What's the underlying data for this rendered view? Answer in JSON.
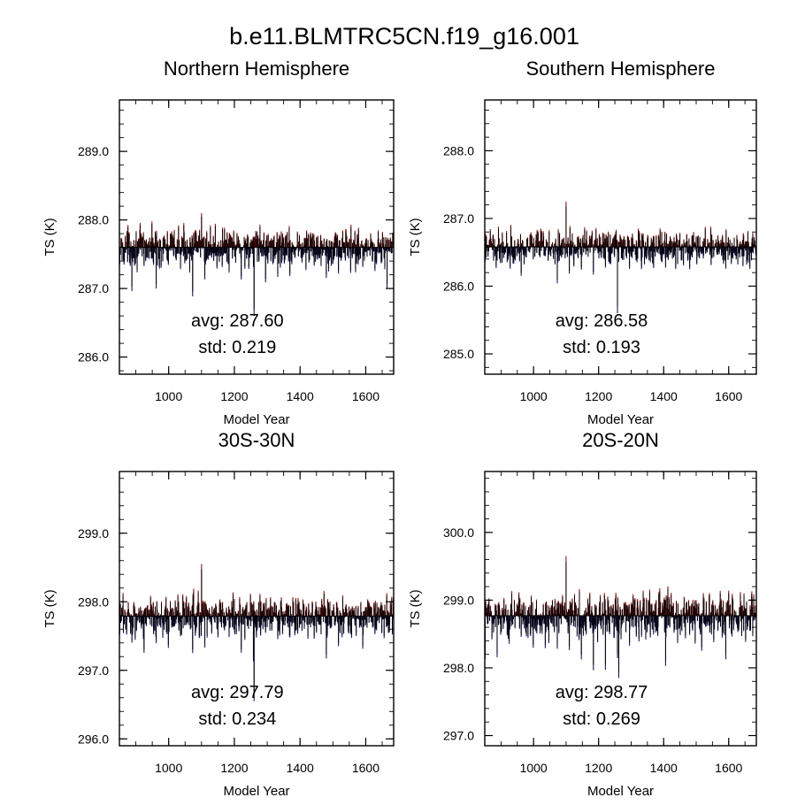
{
  "title": "b.e11.BLMTRC5CN.f19_g16.001",
  "colors": {
    "above": "#8b1a1a",
    "below": "#1a1a5e",
    "axis": "#000000",
    "bar": "#000000"
  },
  "chart_data": [
    {
      "type": "bar",
      "title": "Northern Hemisphere",
      "xlabel": "Model Year",
      "ylabel": "TS (K)",
      "xlim": [
        850,
        1685
      ],
      "ylim": [
        285.75,
        289.75
      ],
      "x_ticks": [
        1000,
        1200,
        1400,
        1600
      ],
      "x_tick_labels": [
        "1000",
        "1200",
        "1400",
        "1600"
      ],
      "y_ticks": [
        286.0,
        287.0,
        288.0,
        289.0
      ],
      "y_tick_labels": [
        "286.0",
        "287.0",
        "288.0",
        "289.0"
      ],
      "avg": 287.6,
      "std": 0.219,
      "avg_text": "avg: 287.60",
      "std_text": "std:  0.219",
      "ref_value": 287.6,
      "series_min": 286.6,
      "series_max": 288.1,
      "min_year": 1260
    },
    {
      "type": "bar",
      "title": "Southern Hemisphere",
      "xlabel": "Model Year",
      "ylabel": "TS (K)",
      "xlim": [
        850,
        1685
      ],
      "ylim": [
        284.7,
        288.75
      ],
      "x_ticks": [
        1000,
        1200,
        1400,
        1600
      ],
      "x_tick_labels": [
        "1000",
        "1200",
        "1400",
        "1600"
      ],
      "y_ticks": [
        285.0,
        286.0,
        287.0,
        288.0
      ],
      "y_tick_labels": [
        "285.0",
        "286.0",
        "287.0",
        "288.0"
      ],
      "avg": 286.58,
      "std": 0.193,
      "avg_text": "avg: 286.58",
      "std_text": "std:  0.193",
      "ref_value": 286.58,
      "series_min": 285.6,
      "series_max": 287.25,
      "min_year": 1258
    },
    {
      "type": "bar",
      "title": "30S-30N",
      "xlabel": "Model Year",
      "ylabel": "TS (K)",
      "xlim": [
        850,
        1685
      ],
      "ylim": [
        295.9,
        299.9
      ],
      "x_ticks": [
        1000,
        1200,
        1400,
        1600
      ],
      "x_tick_labels": [
        "1000",
        "1200",
        "1400",
        "1600"
      ],
      "y_ticks": [
        296.0,
        297.0,
        298.0,
        299.0
      ],
      "y_tick_labels": [
        "296.0",
        "297.0",
        "298.0",
        "299.0"
      ],
      "avg": 297.79,
      "std": 0.234,
      "avg_text": "avg: 297.79",
      "std_text": "std:  0.234",
      "ref_value": 297.79,
      "series_min": 296.55,
      "series_max": 298.55,
      "min_year": 1260
    },
    {
      "type": "bar",
      "title": "20S-20N",
      "xlabel": "Model Year",
      "ylabel": "TS (K)",
      "xlim": [
        850,
        1685
      ],
      "ylim": [
        296.85,
        300.9
      ],
      "x_ticks": [
        1000,
        1200,
        1400,
        1600
      ],
      "x_tick_labels": [
        "1000",
        "1200",
        "1400",
        "1600"
      ],
      "y_ticks": [
        297.0,
        298.0,
        299.0,
        300.0
      ],
      "y_tick_labels": [
        "297.0",
        "298.0",
        "299.0",
        "300.0"
      ],
      "avg": 298.77,
      "std": 0.269,
      "avg_text": "avg: 298.77",
      "std_text": "std:  0.269",
      "ref_value": 298.77,
      "series_min": 297.85,
      "series_max": 299.65,
      "min_year": 1262
    }
  ]
}
